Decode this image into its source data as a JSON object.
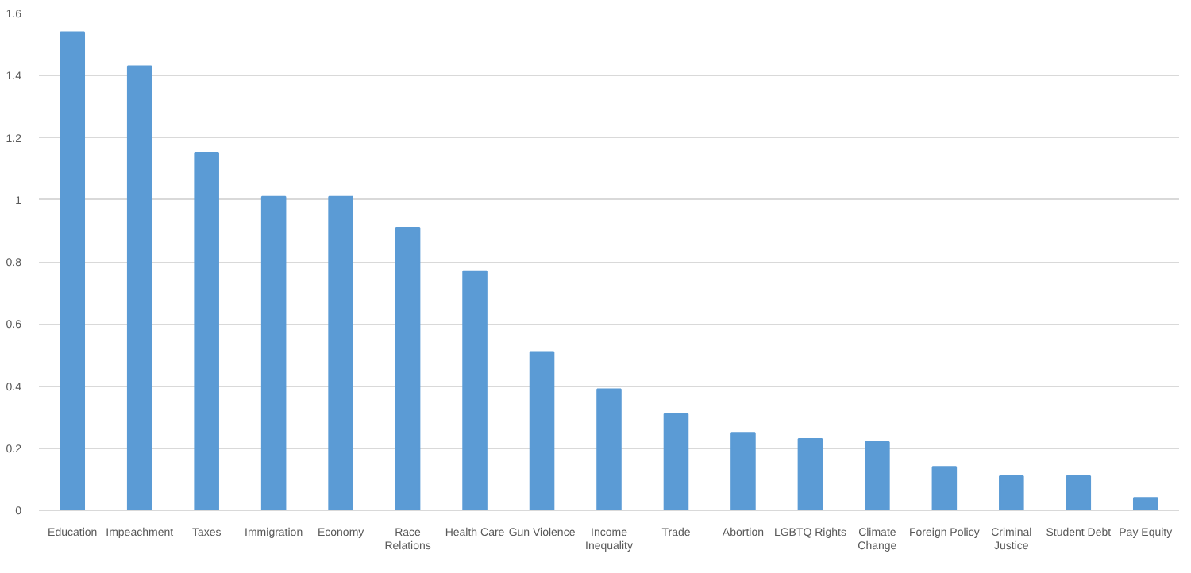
{
  "chart_data": {
    "type": "bar",
    "categories": [
      "Education",
      "Impeachment",
      "Taxes",
      "Immigration",
      "Economy",
      "Race\nRelations",
      "Health Care",
      "Gun Violence",
      "Income\nInequality",
      "Trade",
      "Abortion",
      "LGBTQ Rights",
      "Climate\nChange",
      "Foreign Policy",
      "Criminal\nJustice",
      "Student Debt",
      "Pay Equity"
    ],
    "values": [
      1.54,
      1.43,
      1.15,
      1.01,
      1.01,
      0.91,
      0.77,
      0.51,
      0.39,
      0.31,
      0.25,
      0.23,
      0.22,
      0.14,
      0.11,
      0.11,
      0.04
    ],
    "color": "#5b9bd5",
    "ylim": [
      0,
      1.6
    ],
    "yticks": [
      0,
      0.2,
      0.4,
      0.6,
      0.8,
      1,
      1.2,
      1.4,
      1.6
    ],
    "grid": "y"
  }
}
